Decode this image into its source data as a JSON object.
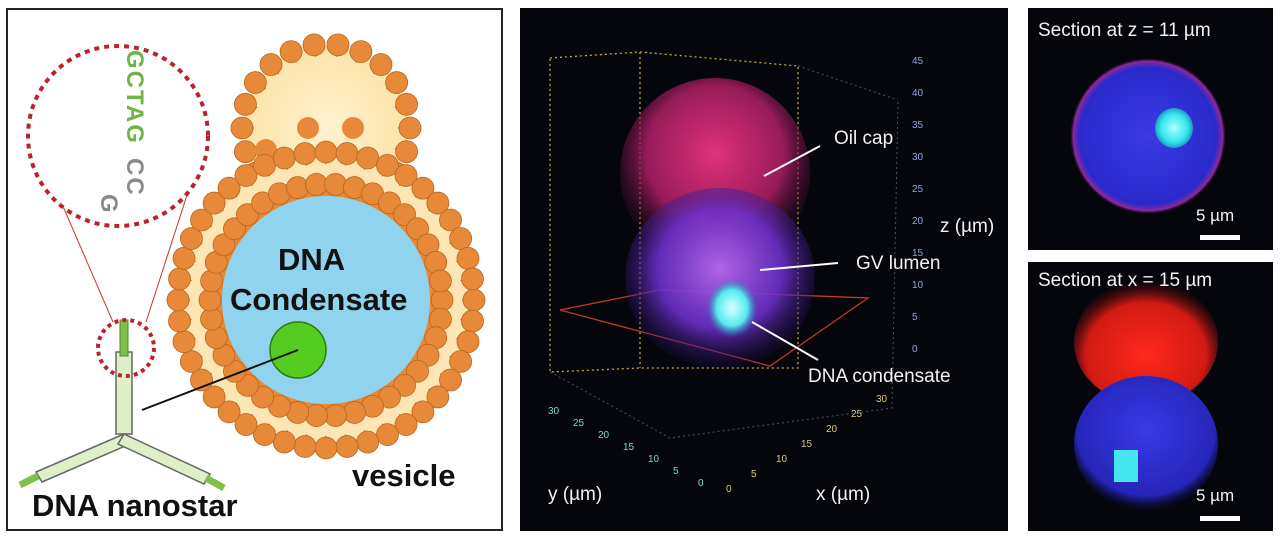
{
  "panel_a": {
    "sequence_green": "GCTAG",
    "sequence_gray": "CC",
    "sequence_gray2": "G",
    "condensate_label_1": "DNA",
    "condensate_label_2": "Condensate",
    "vesicle_label": "vesicle",
    "nanostar_label": "DNA nanostar",
    "colors": {
      "lipid_head": "#e8893a",
      "vesicle_fill": "#fde6b3",
      "condensate": "#8fd3ef",
      "droplet": "#55cc22",
      "dotted_circle": "#b8242a",
      "strand": "#7fbf4a"
    }
  },
  "panel_b": {
    "annotations": [
      "Oil cap",
      "GV lumen",
      "DNA condensate"
    ],
    "z_axis_label": "z (µm)",
    "x_axis_label": "x (µm)",
    "y_axis_label": "y (µm)",
    "z_ticks": [
      "45",
      "40",
      "35",
      "30",
      "25",
      "20",
      "15",
      "10",
      "5",
      "0"
    ],
    "x_ticks": [
      "0",
      "5",
      "10",
      "15",
      "20",
      "25",
      "30"
    ],
    "y_ticks": [
      "30",
      "25",
      "20",
      "15",
      "10",
      "5",
      "0"
    ]
  },
  "panel_c": {
    "title": "Section at z = 11 µm",
    "scale_label": "5 µm"
  },
  "panel_d": {
    "title": "Section at x = 15 µm",
    "scale_label": "5 µm"
  }
}
